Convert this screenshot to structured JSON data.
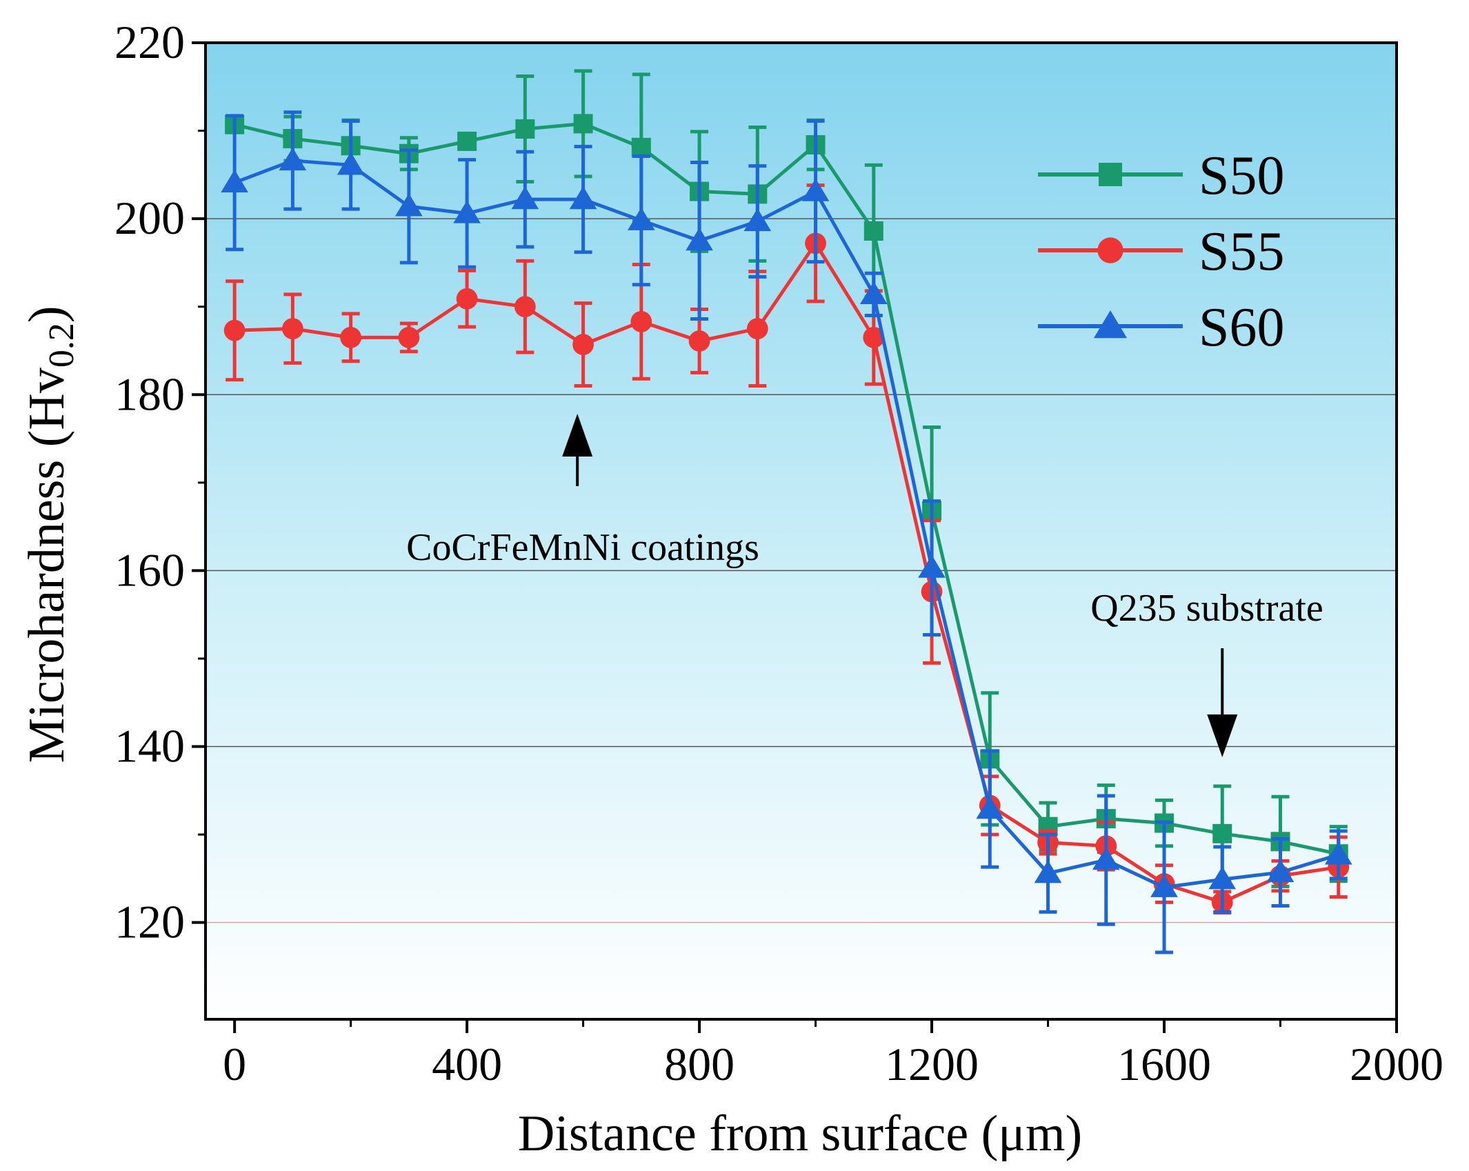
{
  "chart_data": {
    "type": "line",
    "title": "",
    "xlabel": "Distance from surface (μm)",
    "ylabel_main": "Microhardness (Hv",
    "ylabel_sub": "0.2",
    "ylabel_close": ")",
    "xlim": [
      -50,
      2000
    ],
    "ylim": [
      109,
      220
    ],
    "xticks": [
      0,
      400,
      800,
      1200,
      1600,
      2000
    ],
    "xtick_labels": [
      "0",
      "400",
      "800",
      "1200",
      "1600",
      "2000"
    ],
    "yticks": [
      120,
      140,
      160,
      180,
      200,
      220
    ],
    "ytick_labels": [
      "120",
      "140",
      "160",
      "180",
      "200",
      "220"
    ],
    "gridlines_y": [
      120,
      140,
      160,
      180,
      200
    ],
    "x": [
      0,
      100,
      200,
      300,
      400,
      500,
      600,
      700,
      800,
      900,
      1000,
      1100,
      1200,
      1300,
      1400,
      1500,
      1600,
      1700,
      1800,
      1900
    ],
    "series": [
      {
        "name": "S50",
        "color": "#1a9a6c",
        "marker": "square",
        "values": [
          210.7,
          209.1,
          208.3,
          207.4,
          208.8,
          210.2,
          210.8,
          208.1,
          203.1,
          202.8,
          208.4,
          198.6,
          166.8,
          138.6,
          130.9,
          131.8,
          131.3,
          130.1,
          129.2,
          127.8
        ],
        "errors": [
          0.8,
          2.5,
          2.9,
          1.8,
          0.8,
          6.0,
          6.0,
          8.3,
          6.8,
          7.6,
          2.8,
          7.5,
          9.5,
          7.5,
          2.7,
          3.8,
          2.6,
          5.4,
          5.1,
          3.1
        ]
      },
      {
        "name": "S55",
        "color": "#ee3535",
        "marker": "circle",
        "values": [
          187.3,
          187.5,
          186.5,
          186.5,
          190.9,
          190.0,
          185.7,
          188.3,
          186.1,
          187.5,
          197.2,
          186.5,
          157.6,
          133.3,
          129.1,
          128.7,
          124.4,
          122.3,
          125.3,
          126.3
        ],
        "errors": [
          5.6,
          3.9,
          2.7,
          1.6,
          3.2,
          5.2,
          4.7,
          6.5,
          3.6,
          6.5,
          6.6,
          5.3,
          8.1,
          3.3,
          1.3,
          2.7,
          2.1,
          1.2,
          1.7,
          3.4
        ]
      },
      {
        "name": "S60",
        "color": "#1e66d6",
        "marker": "triangle",
        "values": [
          204.1,
          206.6,
          206.1,
          201.4,
          200.6,
          202.2,
          202.2,
          199.8,
          197.5,
          199.7,
          203.1,
          191.4,
          160.3,
          132.9,
          125.6,
          127.1,
          124.0,
          124.9,
          125.7,
          127.7
        ],
        "errors": [
          7.6,
          5.5,
          5.0,
          6.4,
          6.1,
          5.4,
          6.0,
          7.3,
          8.9,
          6.3,
          8.0,
          2.4,
          7.6,
          6.6,
          4.4,
          7.3,
          7.4,
          3.7,
          3.8,
          2.7
        ]
      }
    ],
    "legend_position": "top-right",
    "annotations": [
      {
        "text": "CoCrFeMnNi coatings",
        "arrow": "up",
        "x": 590
      },
      {
        "text": "Q235 substrate",
        "arrow": "down",
        "x": 1700
      }
    ],
    "background": {
      "gradient_top": "#84d3ee",
      "gradient_bottom": "#ffffff"
    }
  }
}
